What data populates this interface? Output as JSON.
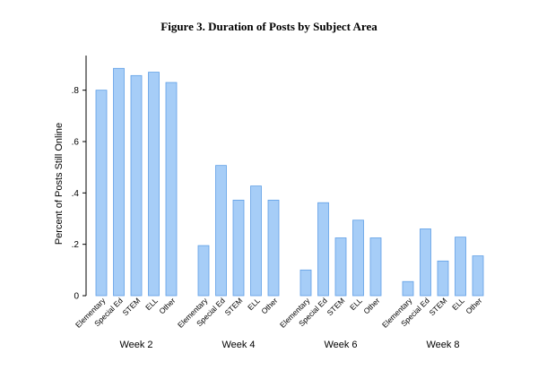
{
  "chart_data": {
    "type": "bar",
    "title": "Figure 3. Duration of Posts by Subject Area",
    "xlabel": "",
    "ylabel": "Percent of Posts Still Online",
    "ylim": [
      0,
      0.9
    ],
    "yticks": [
      0,
      0.2,
      0.4,
      0.6,
      0.8
    ],
    "ytick_labels": [
      "0",
      ".2",
      ".4",
      ".6",
      ".8"
    ],
    "categories": [
      "Elementary",
      "Special Ed",
      "STEM",
      "ELL",
      "Other"
    ],
    "groups": [
      {
        "name": "Week 2",
        "values": [
          0.8,
          0.885,
          0.857,
          0.87,
          0.83
        ]
      },
      {
        "name": "Week 4",
        "values": [
          0.195,
          0.507,
          0.372,
          0.427,
          0.372
        ]
      },
      {
        "name": "Week 6",
        "values": [
          0.1,
          0.362,
          0.225,
          0.294,
          0.225
        ]
      },
      {
        "name": "Week 8",
        "values": [
          0.055,
          0.26,
          0.135,
          0.228,
          0.155
        ]
      }
    ],
    "bar_color": "#a6cdf7",
    "bar_edge_color": "#5f9fe6",
    "grid": false,
    "legend": "none"
  }
}
